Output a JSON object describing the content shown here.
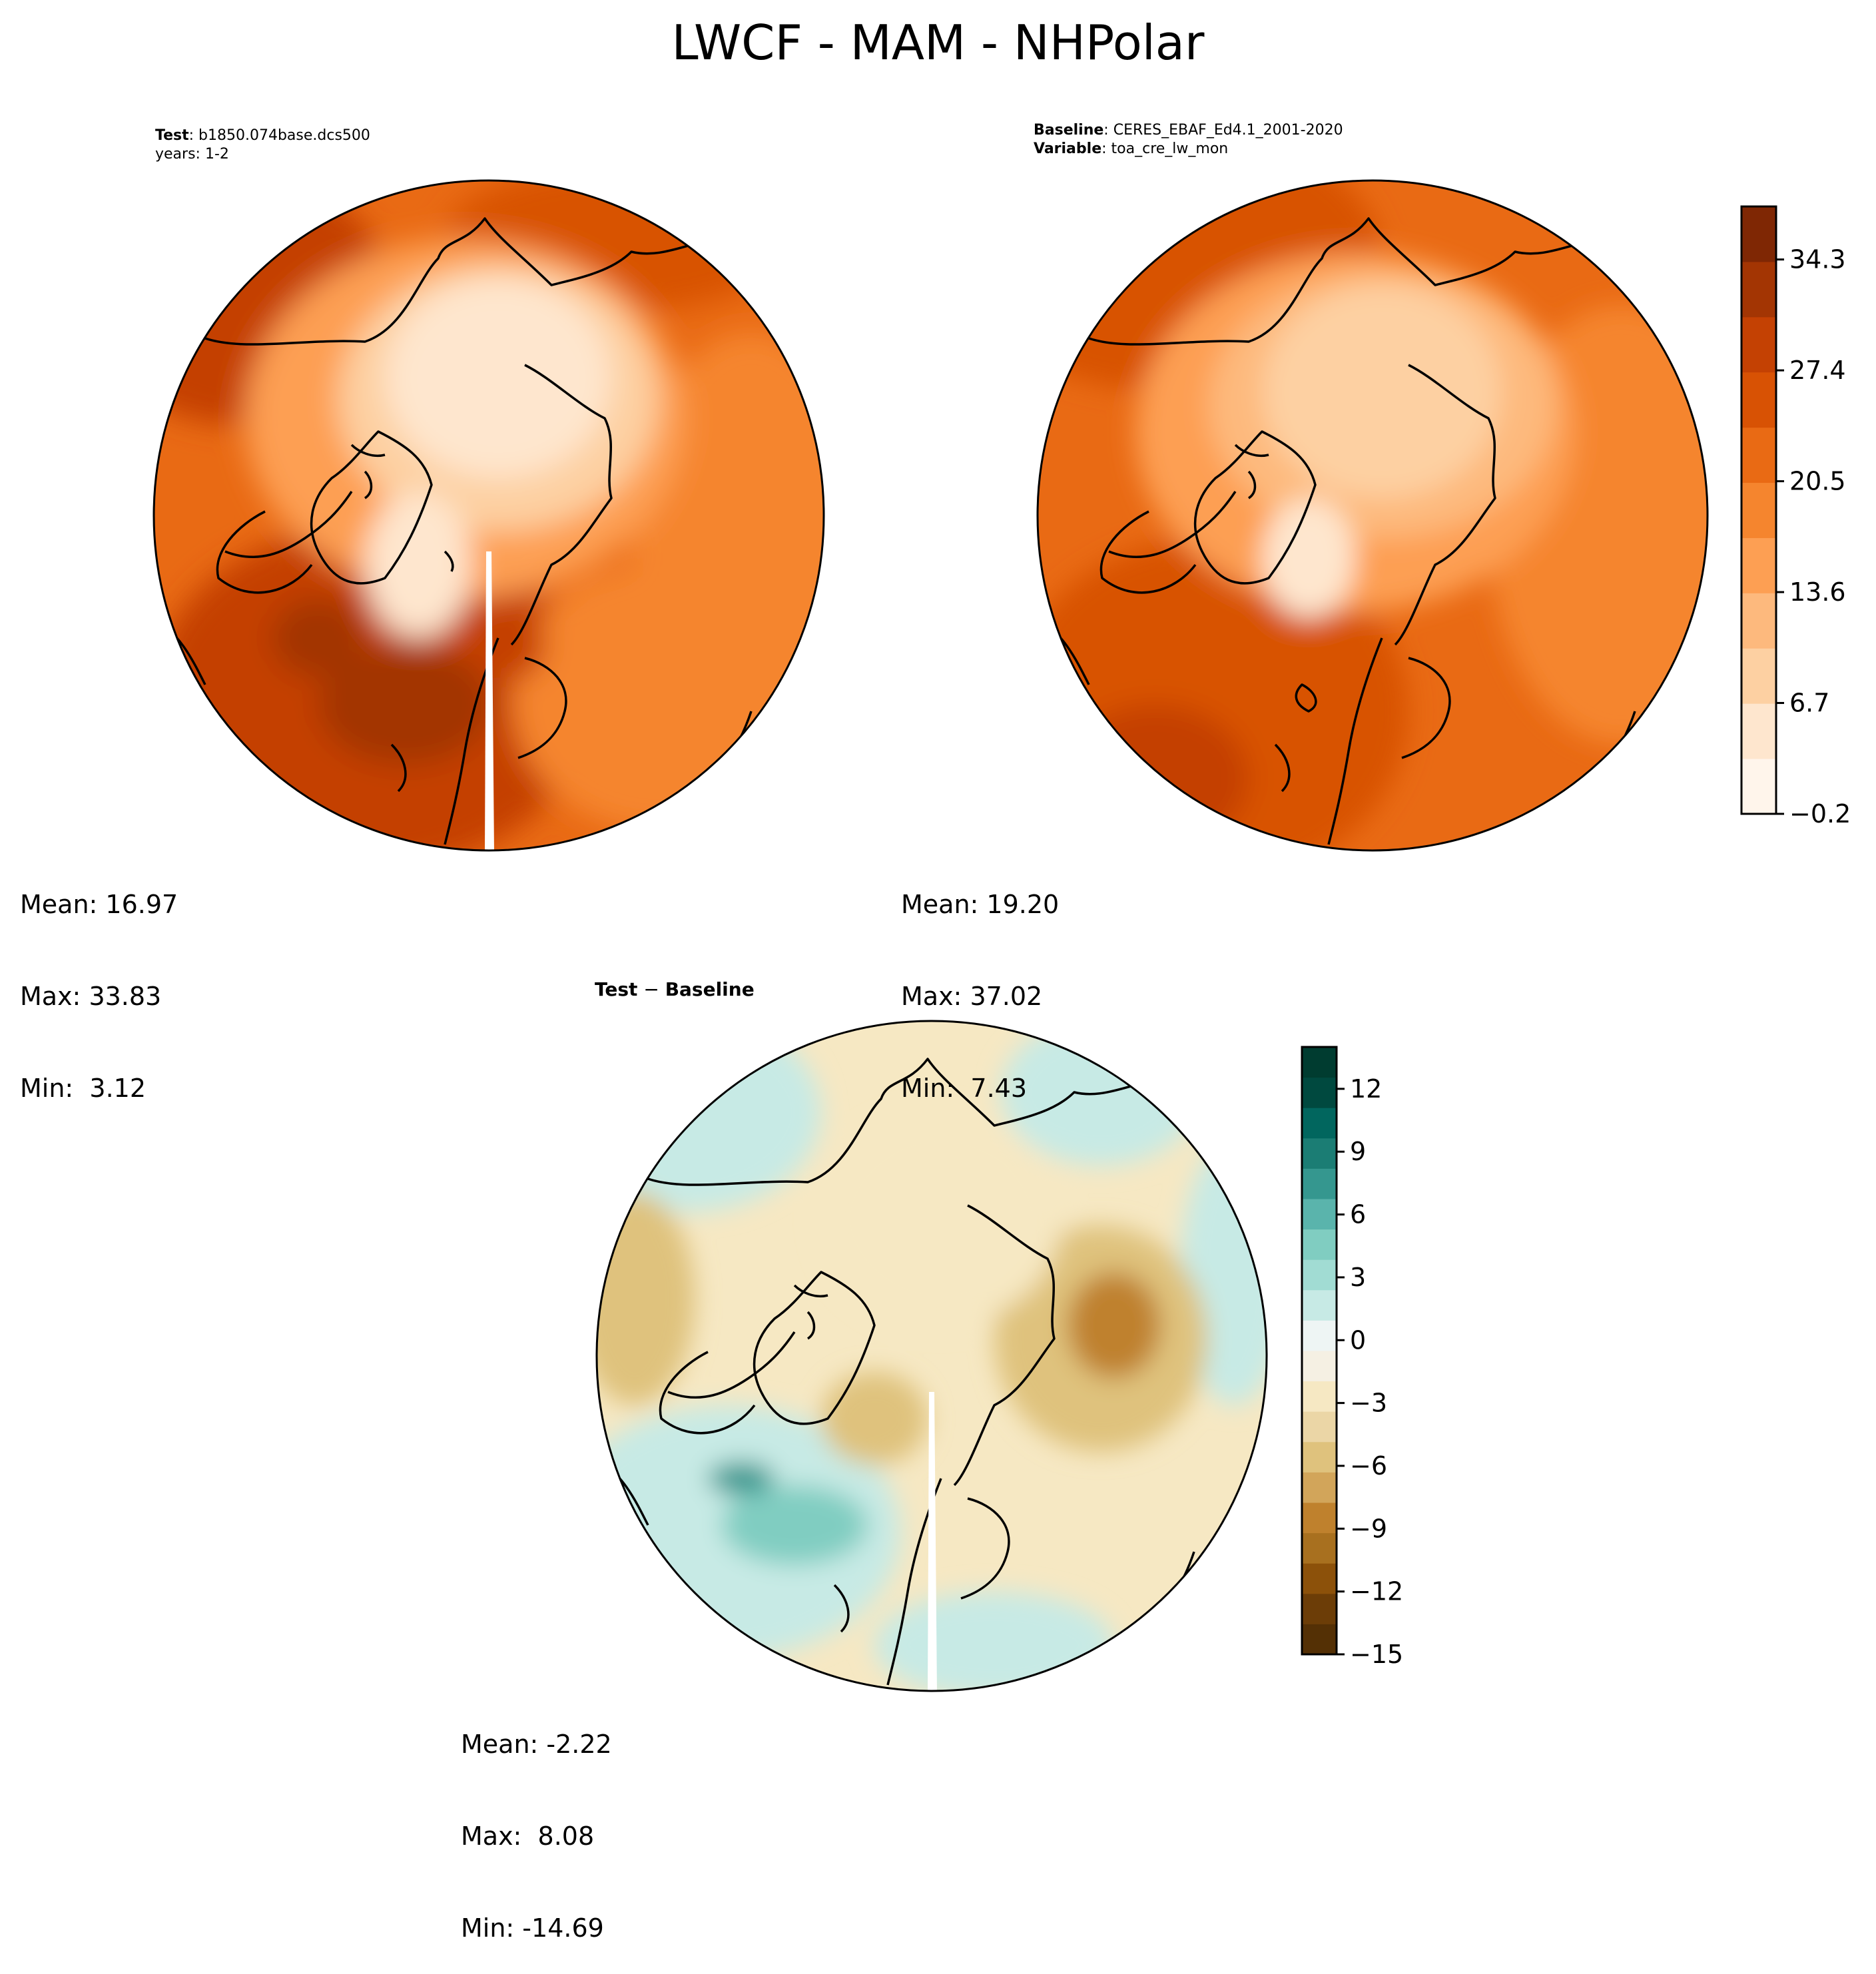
{
  "title": "LWCF - MAM - NHPolar",
  "test_panel": {
    "label_bold": "Test",
    "case": "b1850.074base.dcs500",
    "years": "years: 1-2",
    "stats": {
      "mean": "Mean: 16.97",
      "max": "Max: 33.83",
      "min": "Min:  3.12"
    }
  },
  "baseline_panel": {
    "label_bold": "Baseline",
    "case": "CERES_EBAF_Ed4.1_2001-2020",
    "variable_bold": "Variable",
    "variable": "toa_cre_lw_mon",
    "stats": {
      "mean": "Mean: 19.20",
      "max": "Max: 37.02",
      "min": "Min:  7.43"
    }
  },
  "diff_panel": {
    "label_a": "Test",
    "sep": " − ",
    "label_b": "Baseline",
    "stats": {
      "mean": "Mean: -2.22",
      "max": "Max:  8.08",
      "min": "Min: -14.69"
    }
  },
  "colorbar_main": {
    "ticks": [
      "−0.2",
      "6.7",
      "13.6",
      "20.5",
      "27.4",
      "34.3"
    ],
    "tick_values": [
      -0.2,
      6.7,
      13.6,
      20.5,
      27.4,
      34.3
    ],
    "range": [
      -0.2,
      37.6
    ],
    "colors": [
      "#fff5eb",
      "#fee6ce",
      "#fdd0a2",
      "#fdb97d",
      "#fd9f53",
      "#f5852e",
      "#e96a14",
      "#d85204",
      "#c44103",
      "#a33503",
      "#7f2704"
    ]
  },
  "colorbar_diff": {
    "ticks": [
      "−15",
      "−12",
      "−9",
      "−6",
      "−3",
      "0",
      "3",
      "6",
      "9",
      "12"
    ],
    "tick_values": [
      -15,
      -12,
      -9,
      -6,
      -3,
      0,
      3,
      6,
      9,
      12
    ],
    "range": [
      -15,
      14
    ],
    "colors": [
      "#543005",
      "#6c3d07",
      "#8c510a",
      "#a8701f",
      "#bf812d",
      "#d2a55a",
      "#dfc27d",
      "#ebd6a6",
      "#f6e8c3",
      "#f5f0e3",
      "#eef5f4",
      "#c7eae5",
      "#a1dcd3",
      "#80cdc1",
      "#5ab4ac",
      "#35978f",
      "#1b7d74",
      "#01665e",
      "#00493f",
      "#003c30"
    ]
  },
  "map_colors": {
    "land_outline": "#000000",
    "test_field": [
      "#fee6ce",
      "#fdd0a2",
      "#fdb97d",
      "#fd9f53",
      "#f5852e",
      "#e96a14",
      "#d85204",
      "#c44103",
      "#a33503"
    ],
    "diff_field": [
      "#8c510a",
      "#bf812d",
      "#dfc27d",
      "#f6e8c3",
      "#f5f0e3",
      "#c7eae5",
      "#80cdc1",
      "#35978f"
    ]
  }
}
